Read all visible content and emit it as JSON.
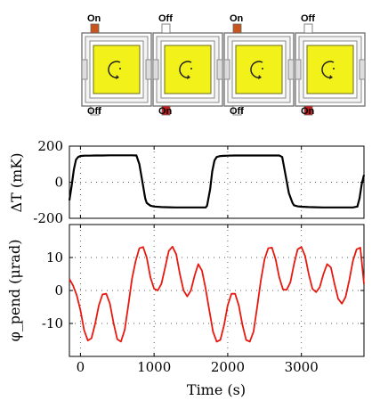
{
  "heaters": {
    "units": [
      {
        "top_label": "On",
        "bottom_label": "Off",
        "top_color": "#c8561c",
        "bottom_color": "#ffffff"
      },
      {
        "top_label": "Off",
        "bottom_label": "On",
        "top_color": "#ffffff",
        "bottom_color": "#cc1a1a"
      },
      {
        "top_label": "On",
        "bottom_label": "Off",
        "top_color": "#c8561c",
        "bottom_color": "#ffffff"
      },
      {
        "top_label": "Off",
        "bottom_label": "On",
        "top_color": "#ffffff",
        "bottom_color": "#cc1a1a"
      }
    ],
    "inner_color": "#f2f21a"
  },
  "chart_data": [
    {
      "type": "line",
      "ylabel": "ΔT (mK)",
      "xlim": [
        -150,
        3850
      ],
      "ylim": [
        -200,
        200
      ],
      "yticks": [
        200,
        0,
        -200
      ],
      "xticks": [
        0,
        1000,
        2000,
        3000
      ],
      "grid": "dotted",
      "line_color": "#000000",
      "series": [
        {
          "x": [
            -150,
            -120,
            -90,
            -60,
            -30,
            0,
            30,
            60,
            120,
            200,
            300,
            400,
            500,
            600,
            700,
            760,
            800,
            850,
            880,
            900,
            950,
            1000,
            1100,
            1200,
            1300,
            1400,
            1500,
            1600,
            1700,
            1720,
            1760,
            1790,
            1820,
            1850,
            1900,
            1950,
            2000,
            2100,
            2200,
            2300,
            2400,
            2500,
            2600,
            2700,
            2740,
            2780,
            2830,
            2880,
            2900,
            2950,
            3000,
            3100,
            3200,
            3300,
            3400,
            3500,
            3600,
            3700,
            3760,
            3790,
            3820,
            3850
          ],
          "y": [
            -100,
            -20,
            70,
            125,
            140,
            145,
            146,
            147,
            147,
            148,
            148,
            149,
            149,
            149,
            149,
            148,
            100,
            -20,
            -90,
            -115,
            -130,
            -135,
            -138,
            -139,
            -140,
            -140,
            -140,
            -140,
            -140,
            -130,
            -40,
            60,
            120,
            140,
            145,
            146,
            147,
            148,
            148,
            148,
            148,
            148,
            148,
            148,
            140,
            50,
            -60,
            -115,
            -128,
            -134,
            -136,
            -138,
            -139,
            -140,
            -140,
            -140,
            -140,
            -140,
            -135,
            -90,
            -10,
            40
          ]
        }
      ]
    },
    {
      "type": "line",
      "ylabel": "φ_pend (μrad)",
      "xlabel": "Time (s)",
      "xlim": [
        -150,
        3850
      ],
      "ylim": [
        -20,
        20
      ],
      "yticks": [
        10,
        0,
        -10
      ],
      "xticks": [
        0,
        1000,
        2000,
        3000
      ],
      "xticklabels": [
        "0",
        "1000",
        "2000",
        "3000"
      ],
      "grid": "dotted",
      "line_color": "#e8190f",
      "series": [
        {
          "x": [
            -150,
            -100,
            -50,
            0,
            50,
            100,
            150,
            200,
            250,
            300,
            350,
            400,
            450,
            500,
            550,
            600,
            650,
            700,
            750,
            800,
            850,
            900,
            950,
            1000,
            1050,
            1100,
            1150,
            1200,
            1250,
            1300,
            1350,
            1400,
            1450,
            1500,
            1550,
            1600,
            1650,
            1700,
            1750,
            1800,
            1850,
            1900,
            1950,
            2000,
            2050,
            2100,
            2150,
            2200,
            2250,
            2300,
            2350,
            2400,
            2450,
            2500,
            2550,
            2600,
            2650,
            2700,
            2750,
            2800,
            2850,
            2900,
            2950,
            3000,
            3050,
            3100,
            3150,
            3200,
            3250,
            3300,
            3350,
            3400,
            3450,
            3500,
            3550,
            3600,
            3650,
            3700,
            3750,
            3800,
            3850
          ],
          "y": [
            3.5,
            1.5,
            -1.5,
            -6,
            -12,
            -15.2,
            -14.5,
            -10,
            -4.5,
            -1.2,
            -1,
            -4,
            -10,
            -14.8,
            -15.5,
            -12,
            -4.5,
            3.5,
            9,
            12.8,
            13.2,
            10,
            4,
            0.5,
            0,
            2,
            7,
            12,
            13.3,
            11,
            5,
            0,
            -1.8,
            0,
            4.5,
            8,
            6,
            0.5,
            -6,
            -12.5,
            -15.5,
            -15,
            -10.5,
            -4.5,
            -1,
            -1,
            -4.5,
            -10.5,
            -15,
            -15.5,
            -12.5,
            -5,
            3,
            9.5,
            12.8,
            13,
            9.5,
            4,
            0.3,
            0.2,
            2.5,
            8,
            12.5,
            13.2,
            10.5,
            5,
            0.5,
            -0.5,
            1,
            5,
            8,
            7,
            2,
            -2.5,
            -4,
            -2,
            3,
            9,
            12.5,
            13,
            2
          ]
        }
      ]
    }
  ]
}
